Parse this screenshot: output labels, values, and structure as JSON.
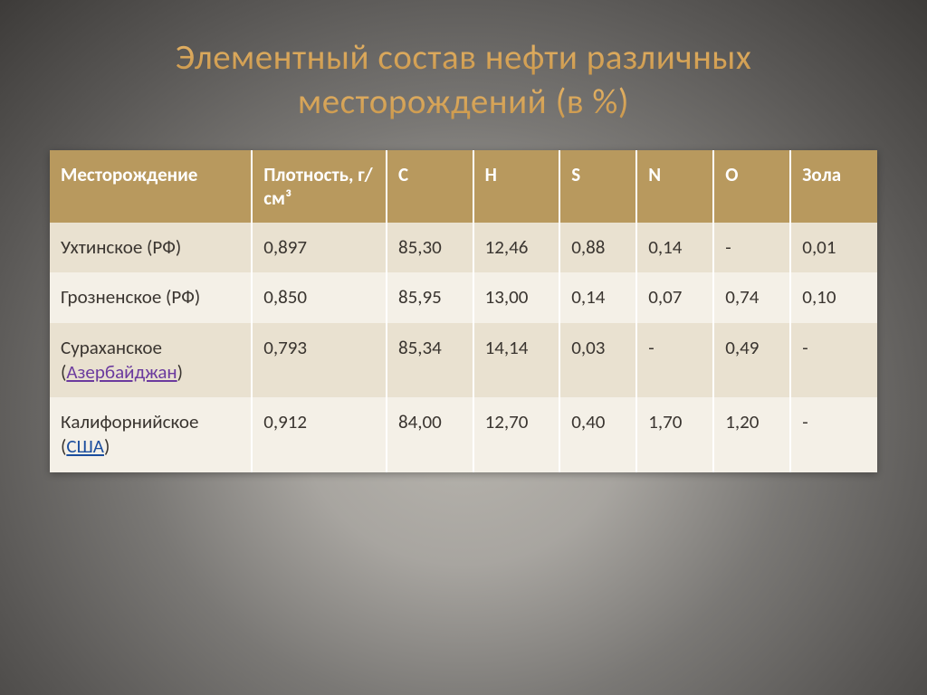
{
  "title": "Элементный состав нефти различных месторождений (в %)",
  "table": {
    "headers": {
      "name": "Месторождение",
      "density": "Плотность, г/см³",
      "c": "C",
      "h": "H",
      "s": "S",
      "n": "N",
      "o": "O",
      "ash": "Зола"
    },
    "rows": [
      {
        "name_prefix": "Ухтинское (РФ)",
        "link_text": "",
        "name_suffix": "",
        "has_link": false,
        "link_class": "",
        "density": "0,897",
        "c": "85,30",
        "h": "12,46",
        "s": "0,88",
        "n": "0,14",
        "o": "-",
        "ash": "0,01"
      },
      {
        "name_prefix": "Грозненское (РФ)",
        "link_text": "",
        "name_suffix": "",
        "has_link": false,
        "link_class": "",
        "density": "0,850",
        "c": "85,95",
        "h": "13,00",
        "s": "0,14",
        "n": "0,07",
        "o": "0,74",
        "ash": "0,10"
      },
      {
        "name_prefix": "Сураханское (",
        "link_text": "Азербайджан",
        "name_suffix": ")",
        "has_link": true,
        "link_class": "visited-link",
        "density": "0,793",
        "c": "85,34",
        "h": "14,14",
        "s": "0,03",
        "n": "-",
        "o": "0,49",
        "ash": "-"
      },
      {
        "name_prefix": "Калифорнийское (",
        "link_text": "США",
        "name_suffix": ")",
        "has_link": true,
        "link_class": "link",
        "density": "0,912",
        "c": "84,00",
        "h": "12,70",
        "s": "0,40",
        "n": "1,70",
        "o": "1,20",
        "ash": "-"
      }
    ]
  },
  "styling": {
    "header_bg": "#b8995e",
    "row_odd_bg": "#e9e1d0",
    "row_even_bg": "#f4f0e7",
    "header_text_color": "#ffffff",
    "cell_text_color": "#3a3530",
    "link_color": "#1a4d9e",
    "visited_link_color": "#6b3a9e",
    "title_gradient_top": "#e8b668",
    "title_gradient_bottom": "#c8954a",
    "title_fontsize": 39,
    "table_fontsize": 21
  }
}
